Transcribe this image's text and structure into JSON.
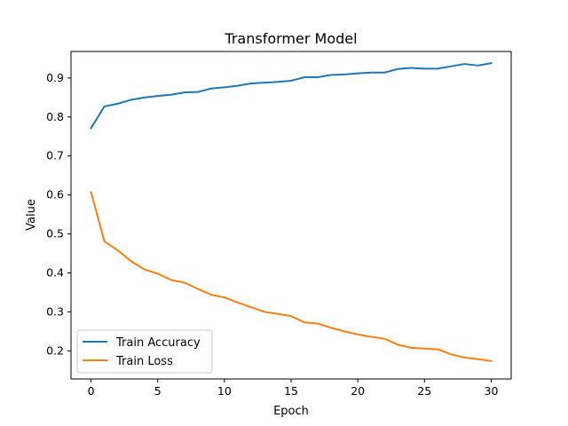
{
  "chart_data": {
    "type": "line",
    "title": "Transformer Model",
    "xlabel": "Epoch",
    "ylabel": "Value",
    "xlim": [
      -1.5,
      31.5
    ],
    "ylim": [
      0.128,
      0.968
    ],
    "xticks": [
      0,
      5,
      10,
      15,
      20,
      25,
      30
    ],
    "yticks": [
      0.2,
      0.3,
      0.4,
      0.5,
      0.6,
      0.7,
      0.8,
      0.9
    ],
    "grid": false,
    "legend_position": "lower-left",
    "x": [
      0,
      1,
      2,
      3,
      4,
      5,
      6,
      7,
      8,
      9,
      10,
      11,
      12,
      13,
      14,
      15,
      16,
      17,
      18,
      19,
      20,
      21,
      22,
      23,
      24,
      25,
      26,
      27,
      28,
      29,
      30
    ],
    "series": [
      {
        "name": "Train Accuracy",
        "color": "#1f77b4",
        "values": [
          0.771,
          0.827,
          0.834,
          0.844,
          0.85,
          0.854,
          0.857,
          0.863,
          0.864,
          0.873,
          0.876,
          0.88,
          0.886,
          0.888,
          0.89,
          0.893,
          0.902,
          0.902,
          0.908,
          0.909,
          0.912,
          0.914,
          0.914,
          0.923,
          0.926,
          0.924,
          0.924,
          0.93,
          0.936,
          0.932,
          0.938
        ]
      },
      {
        "name": "Train Loss",
        "color": "#ff7f0e",
        "values": [
          0.607,
          0.481,
          0.458,
          0.43,
          0.409,
          0.398,
          0.382,
          0.375,
          0.359,
          0.344,
          0.337,
          0.324,
          0.312,
          0.3,
          0.295,
          0.289,
          0.273,
          0.27,
          0.259,
          0.25,
          0.242,
          0.236,
          0.231,
          0.216,
          0.208,
          0.206,
          0.204,
          0.191,
          0.183,
          0.179,
          0.174
        ]
      }
    ]
  }
}
